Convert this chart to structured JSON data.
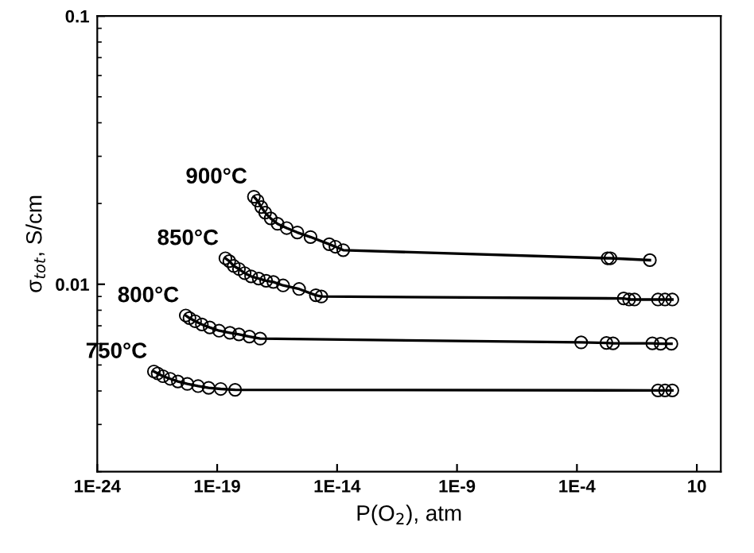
{
  "chart_data": {
    "type": "line",
    "xlabel": "P(O$_{2}$), atm",
    "ylabel": "σ$_{tot}$, S/cm",
    "log": "xy",
    "marker": "circle",
    "line_style": "solid",
    "grid": false,
    "legend": false,
    "xlim": [
      1e-24,
      100
    ],
    "ylim": [
      0.002,
      0.1
    ],
    "xticks": [
      {
        "value": 1e-24,
        "label": "1E-24"
      },
      {
        "value": 1e-19,
        "label": "1E-19"
      },
      {
        "value": 1e-14,
        "label": "1E-14"
      },
      {
        "value": 1e-09,
        "label": "1E-9"
      },
      {
        "value": 0.0001,
        "label": "1E-4"
      },
      10
    ],
    "yticks": [
      0.01,
      0.1
    ],
    "series": [
      {
        "name": "900°C",
        "color": "#000000",
        "x": [
          3.4e-18,
          4.8e-18,
          6.9e-18,
          1e-17,
          1.7e-17,
          3.3e-17,
          7.9e-17,
          2.2e-16,
          7.8e-16,
          4.7e-15,
          8.5e-15,
          1.8e-14,
          0.0019,
          0.0025,
          0.11
        ],
        "values": [
          0.0212,
          0.0205,
          0.0194,
          0.0185,
          0.0176,
          0.0168,
          0.0162,
          0.0156,
          0.015,
          0.0141,
          0.0138,
          0.0134,
          0.0125,
          0.0125,
          0.0123
        ]
      },
      {
        "name": "850°C",
        "color": "#000000",
        "x": [
          2.2e-19,
          3.2e-19,
          4.9e-19,
          8.1e-19,
          1.4e-18,
          2.6e-18,
          5.4e-18,
          1.1e-17,
          2.2e-17,
          5.6e-17,
          2.6e-16,
          1.3e-15,
          2.2e-15,
          0.0089,
          0.015,
          0.025,
          0.24,
          0.47,
          0.95
        ],
        "values": [
          0.0125,
          0.0122,
          0.0117,
          0.0114,
          0.011,
          0.0107,
          0.0105,
          0.0103,
          0.0102,
          0.0099,
          0.0096,
          0.0091,
          0.009,
          0.00885,
          0.00877,
          0.00877,
          0.00877,
          0.00877,
          0.00877
        ]
      },
      {
        "name": "800°C",
        "color": "#000000",
        "x": [
          4.9e-21,
          7e-21,
          1.2e-20,
          2.3e-20,
          4.9e-20,
          1.2e-19,
          3.4e-19,
          8.1e-19,
          2.2e-18,
          6.2e-18,
          0.00015,
          0.0017,
          0.0032,
          0.14,
          0.31,
          0.87
        ],
        "values": [
          0.00765,
          0.00748,
          0.00728,
          0.00708,
          0.0069,
          0.00671,
          0.00659,
          0.0065,
          0.00638,
          0.00627,
          0.00607,
          0.00604,
          0.00602,
          0.00602,
          0.006,
          0.006
        ]
      },
      {
        "name": "750°C",
        "color": "#000000",
        "x": [
          2.3e-22,
          3.3e-22,
          5.5e-22,
          1.1e-21,
          2.3e-21,
          5.7e-21,
          1.6e-20,
          4.4e-20,
          1.4e-19,
          5.6e-19,
          0.24,
          0.47,
          0.95
        ],
        "values": [
          0.00473,
          0.00465,
          0.00454,
          0.00444,
          0.00434,
          0.00425,
          0.00417,
          0.00411,
          0.00407,
          0.00404,
          0.00402,
          0.00402,
          0.00402
        ]
      }
    ]
  }
}
